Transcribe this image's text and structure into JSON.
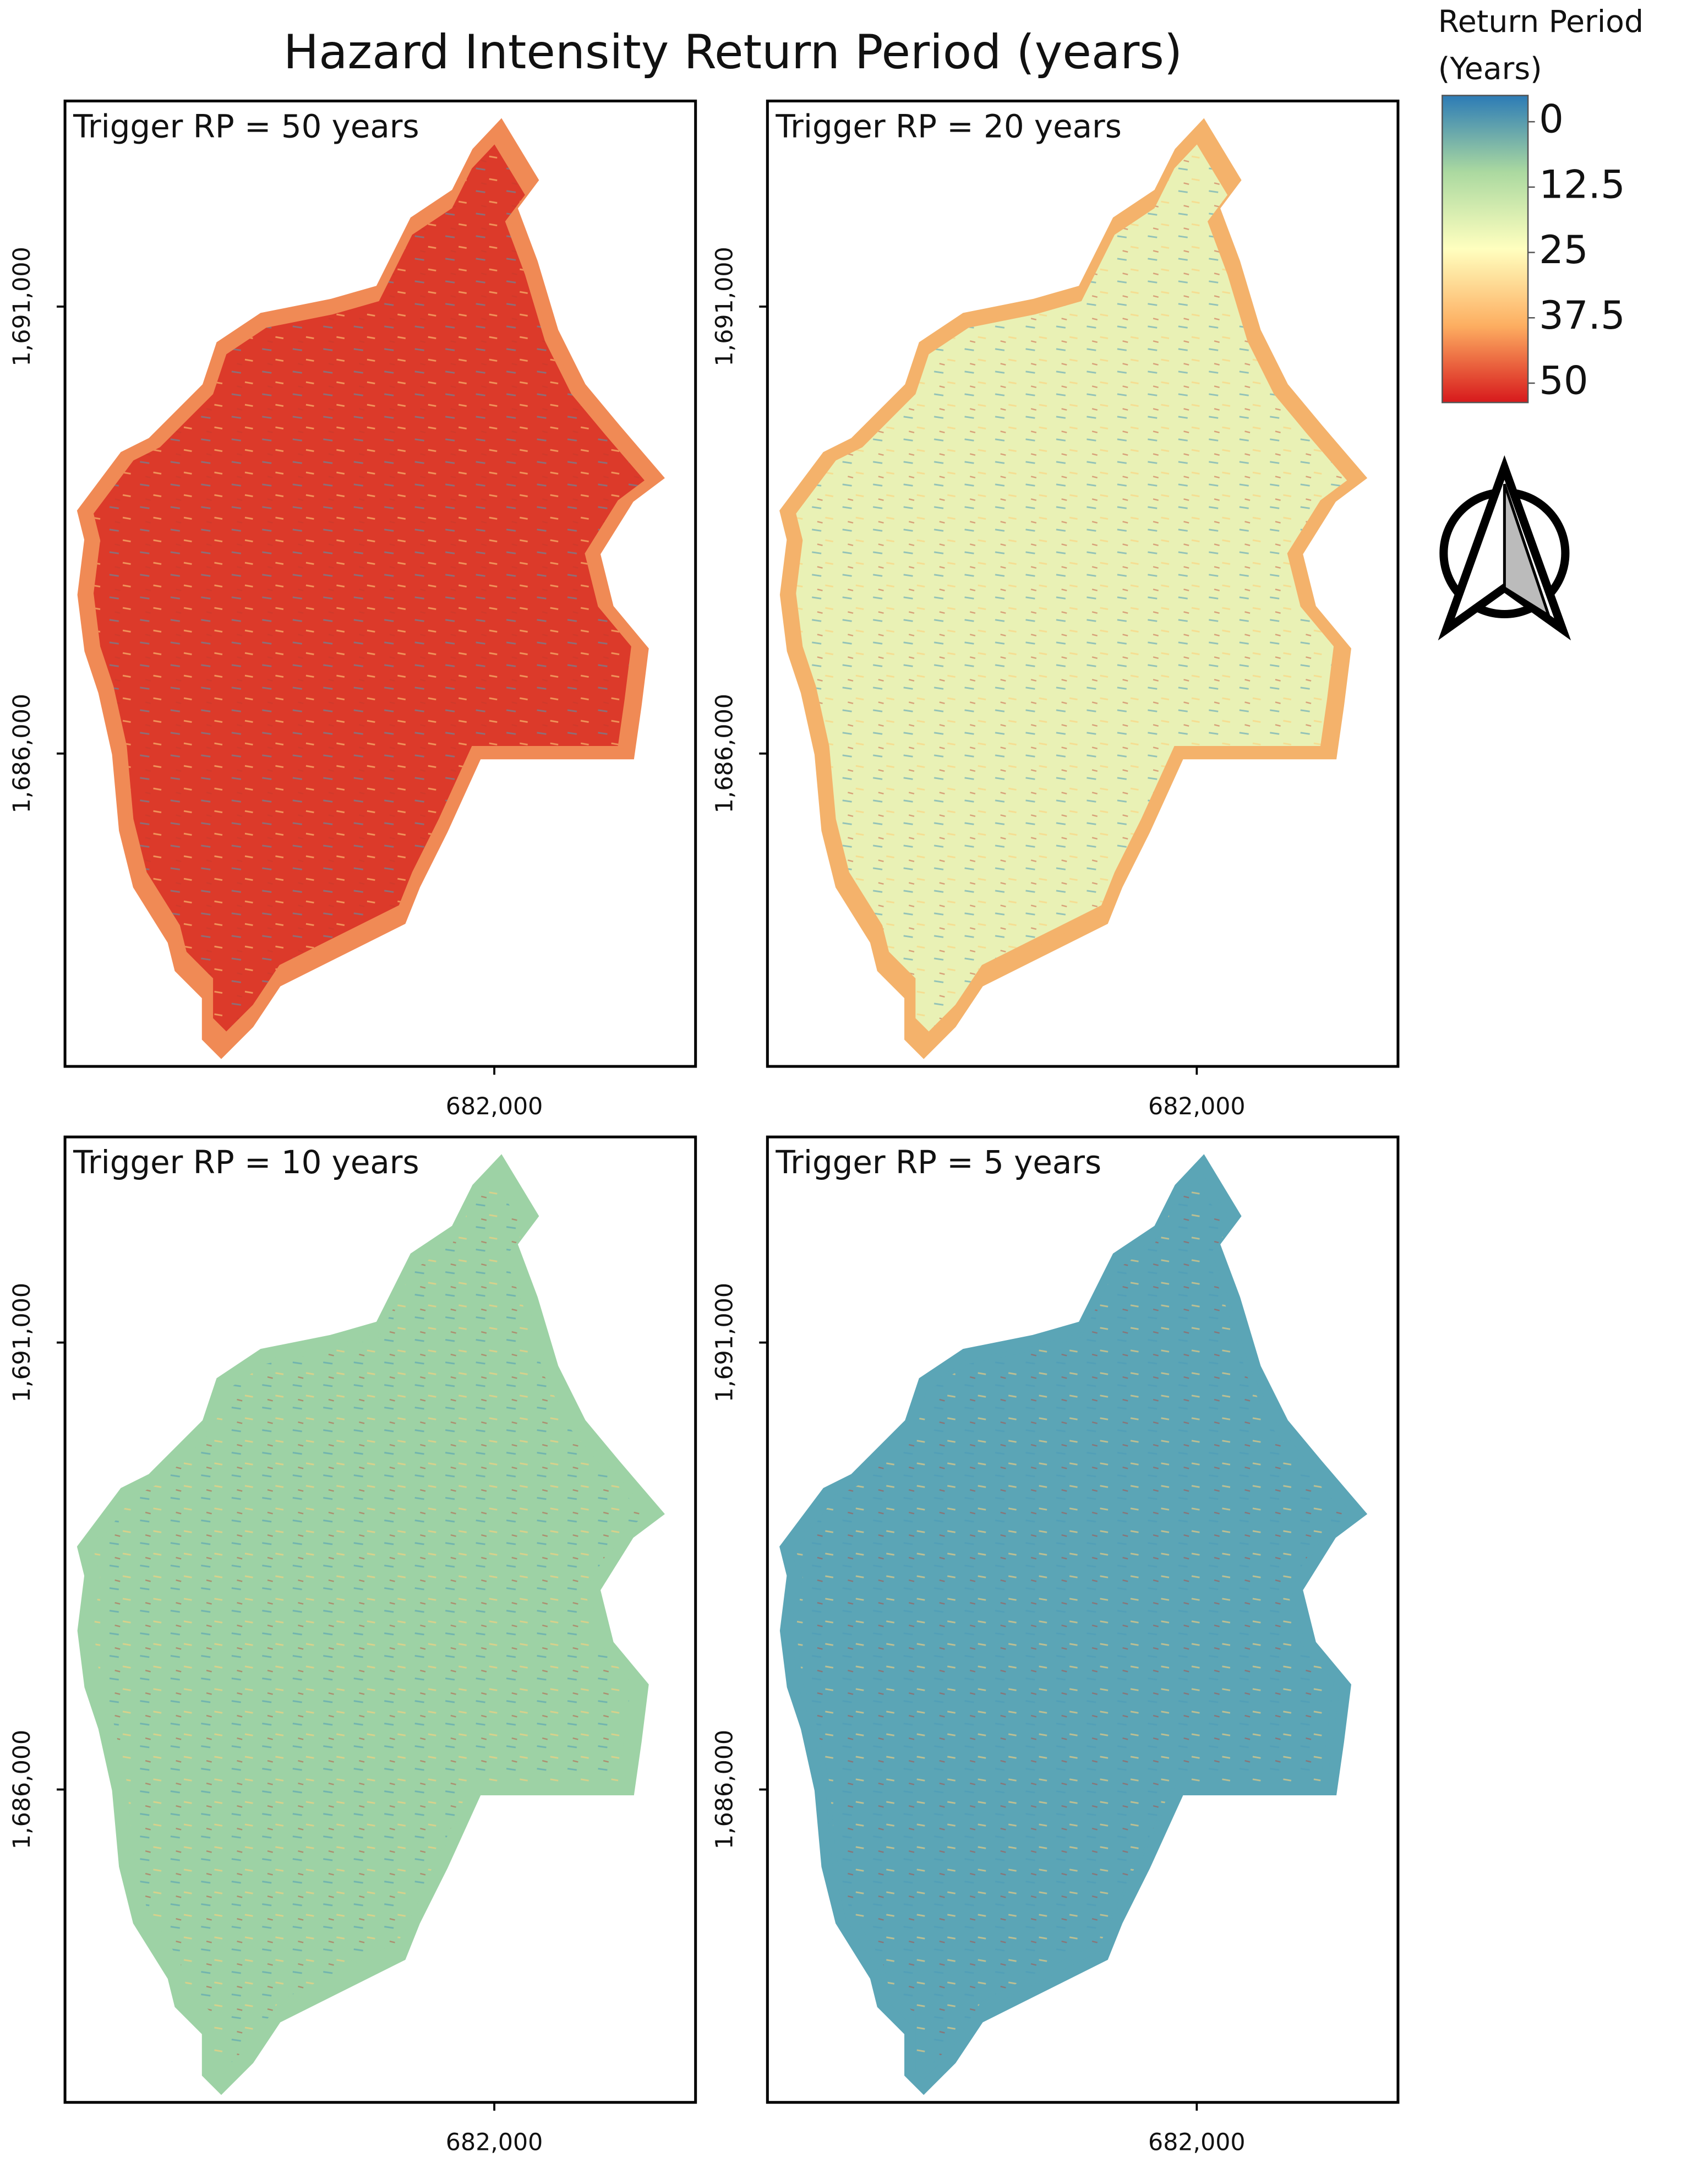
{
  "title": "Hazard Intensity Return Period (years)",
  "legend": {
    "title_lines": [
      "Return Period",
      "(Years)"
    ],
    "ticks": [
      0,
      12.5,
      25,
      37.5,
      50
    ],
    "range": [
      0,
      50
    ],
    "colors": [
      "#2c7bb6",
      "#abd9a0",
      "#ffffbf",
      "#fdae61",
      "#d7191c"
    ]
  },
  "panels": [
    {
      "label": "Trigger RP = 50 years",
      "color": "#dc3a2a",
      "rim_color": "#f08a55",
      "xlim": [
        677200,
        684250
      ],
      "ylim": [
        1682500,
        1693300
      ],
      "xticks": [
        {
          "value": 682000,
          "label": "682,000"
        }
      ],
      "yticks": [
        {
          "value": 1691000,
          "label": "1,691,000"
        },
        {
          "value": 1686000,
          "label": "1,686,000"
        }
      ]
    },
    {
      "label": "Trigger RP = 20 years",
      "color": "#e9f1b5",
      "rim_color": "#f4b26b",
      "xlim": [
        677200,
        684250
      ],
      "ylim": [
        1682500,
        1693300
      ],
      "xticks": [
        {
          "value": 682000,
          "label": "682,000"
        }
      ],
      "yticks": [
        {
          "value": 1691000,
          "label": "1,691,000"
        },
        {
          "value": 1686000,
          "label": "1,686,000"
        }
      ]
    },
    {
      "label": "Trigger RP = 10 years",
      "color": "#9dd2a5",
      "rim_color": "#9dd2a5",
      "xlim": [
        677200,
        684250
      ],
      "ylim": [
        1682500,
        1693300
      ],
      "xticks": [
        {
          "value": 682000,
          "label": "682,000"
        }
      ],
      "yticks": [
        {
          "value": 1691000,
          "label": "1,691,000"
        },
        {
          "value": 1686000,
          "label": "1,686,000"
        }
      ]
    },
    {
      "label": "Trigger RP = 5 years",
      "color": "#5ba5b6",
      "rim_color": "#5ba5b6",
      "xlim": [
        677200,
        684250
      ],
      "ylim": [
        1682500,
        1693300
      ],
      "xticks": [
        {
          "value": 682000,
          "label": "682,000"
        }
      ],
      "yticks": [
        {
          "value": 1691000,
          "label": "1,691,000"
        },
        {
          "value": 1686000,
          "label": "1,686,000"
        }
      ]
    }
  ]
}
